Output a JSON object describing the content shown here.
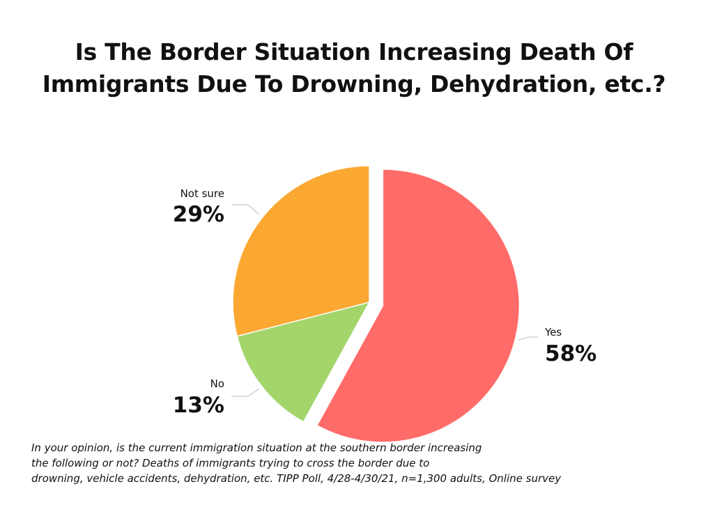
{
  "title_lines": [
    "Is The Border Situation Increasing Death Of",
    "Immigrants Due To Drowning, Dehydration, etc.?"
  ],
  "chart_data": {
    "type": "pie",
    "title": "Is The Border Situation Increasing Death Of Immigrants Due To Drowning, Dehydration, etc.?",
    "slices": [
      {
        "label": "Yes",
        "value": 58,
        "display": "58%",
        "color": "#ff6b68",
        "exploded": true
      },
      {
        "label": "No",
        "value": 13,
        "display": "13%",
        "color": "#a3d56b",
        "exploded": false
      },
      {
        "label": "Not sure",
        "value": 29,
        "display": "29%",
        "color": "#fba832",
        "exploded": false
      }
    ],
    "start": "12 o'clock",
    "direction": "clockwise"
  },
  "caption_lines": [
    "In your opinion, is the current immigration situation at the southern border increasing",
    "the following or not? Deaths of immigrants trying to cross the border due to",
    "drowning, vehicle accidents, dehydration, etc.  TIPP Poll, 4/28-4/30/21, n=1,300 adults, Online survey"
  ]
}
